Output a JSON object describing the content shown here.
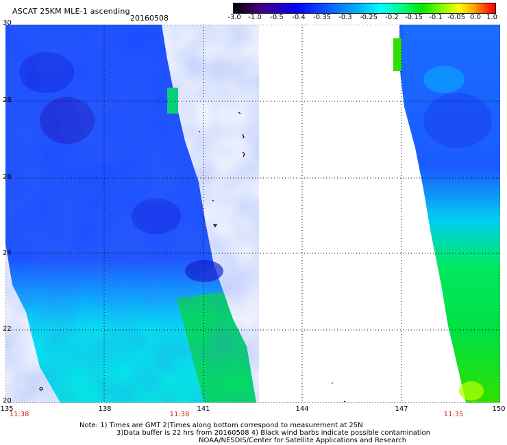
{
  "header": {
    "title": "ASCAT 25KM MLE-1 ascending",
    "date": "20160508"
  },
  "colorbar": {
    "labels": [
      "-3.0",
      "-1.0",
      "-0.5",
      "-0.4",
      "-0.35",
      "-0.3",
      "-0.25",
      "-0.2",
      "-0.15",
      "-0.1",
      "-0.05",
      "0.0",
      "1.0"
    ]
  },
  "map": {
    "lat_labels": [
      "30",
      "28",
      "26",
      "24",
      "22",
      "20"
    ],
    "lon_labels": [
      "135",
      "138",
      "141",
      "144",
      "147",
      "150"
    ],
    "time_labels": [
      "11:38",
      "11:38",
      "11:35"
    ]
  },
  "notes": {
    "line1": "Note: 1) Times are GMT 2)Times along bottom correspond to measurement at 25N",
    "line2": "3)Data buffer is 22 hrs from 20160508 4) Black wind barbs indicate possible contamination",
    "line3": "NOAA/NESDIS/Center for Satellite Applications and Research"
  },
  "colors": {
    "deep_blue": "#1030e8",
    "mid_blue": "#1a5cff",
    "cyan": "#00e0ff",
    "green": "#00e040",
    "yellow_green": "#b0ff00"
  }
}
